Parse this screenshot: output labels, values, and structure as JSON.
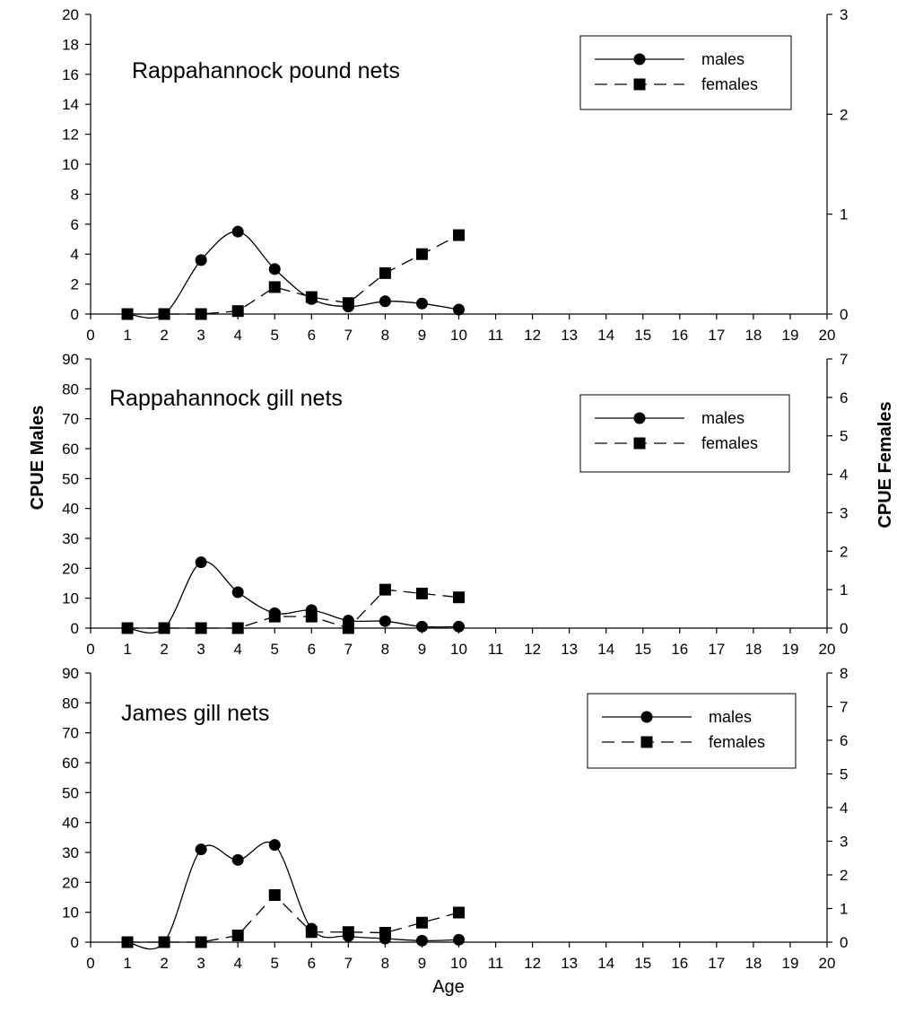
{
  "figure": {
    "y_left_title": "CPUE Males",
    "y_right_title": "CPUE Females",
    "x_title": "Age"
  },
  "chart_data": [
    {
      "type": "line",
      "title": "Rappahannock pound nets",
      "xlabel": "Age",
      "ylabel": "CPUE Males",
      "y2label": "CPUE Females",
      "xlim": [
        0,
        20
      ],
      "x_ticks": [
        0,
        1,
        2,
        3,
        4,
        5,
        6,
        7,
        8,
        9,
        10,
        11,
        12,
        13,
        14,
        15,
        16,
        17,
        18,
        19,
        20
      ],
      "ylim": [
        0,
        20
      ],
      "y_ticks": [
        0,
        2,
        4,
        6,
        8,
        10,
        12,
        14,
        16,
        18,
        20
      ],
      "y2lim": [
        0,
        3
      ],
      "y2_ticks": [
        0,
        1,
        2,
        3
      ],
      "grid": false,
      "legend": "top-right",
      "series": [
        {
          "name": "males",
          "axis": "left",
          "marker": "circle",
          "line": "solid",
          "smooth": true,
          "x": [
            1,
            2,
            3,
            4,
            5,
            6,
            7,
            8,
            9,
            10
          ],
          "y": [
            0,
            0,
            3.6,
            5.5,
            3.0,
            1.0,
            0.5,
            0.85,
            0.7,
            0.3
          ]
        },
        {
          "name": "females",
          "axis": "right",
          "marker": "square",
          "line": "dashed",
          "smooth": false,
          "x": [
            1,
            2,
            3,
            4,
            5,
            6,
            7,
            8,
            9,
            10
          ],
          "y": [
            0,
            0,
            0,
            0.03,
            0.27,
            0.17,
            0.11,
            0.41,
            0.6,
            0.79
          ]
        }
      ]
    },
    {
      "type": "line",
      "title": "Rappahannock gill nets",
      "xlabel": "Age",
      "ylabel": "CPUE Males",
      "y2label": "CPUE Females",
      "xlim": [
        0,
        20
      ],
      "x_ticks": [
        0,
        1,
        2,
        3,
        4,
        5,
        6,
        7,
        8,
        9,
        10,
        11,
        12,
        13,
        14,
        15,
        16,
        17,
        18,
        19,
        20
      ],
      "ylim": [
        0,
        90
      ],
      "y_ticks": [
        0,
        10,
        20,
        30,
        40,
        50,
        60,
        70,
        80,
        90
      ],
      "y2lim": [
        0,
        7
      ],
      "y2_ticks": [
        0,
        1,
        2,
        3,
        4,
        5,
        6,
        7
      ],
      "grid": false,
      "legend": "top-right",
      "series": [
        {
          "name": "males",
          "axis": "left",
          "marker": "circle",
          "line": "solid",
          "smooth": true,
          "x": [
            1,
            2,
            3,
            4,
            5,
            6,
            7,
            8,
            9,
            10
          ],
          "y": [
            0,
            0,
            22,
            12,
            5,
            6,
            2.5,
            2.3,
            0.5,
            0.5
          ]
        },
        {
          "name": "females",
          "axis": "right",
          "marker": "square",
          "line": "dashed",
          "smooth": false,
          "x": [
            1,
            2,
            3,
            4,
            5,
            6,
            7,
            8,
            9,
            10
          ],
          "y": [
            0,
            0,
            0,
            0,
            0.3,
            0.3,
            0,
            1.0,
            0.9,
            0.8
          ]
        }
      ]
    },
    {
      "type": "line",
      "title": "James gill nets",
      "xlabel": "Age",
      "ylabel": "CPUE Males",
      "y2label": "CPUE Females",
      "xlim": [
        0,
        20
      ],
      "x_ticks": [
        0,
        1,
        2,
        3,
        4,
        5,
        6,
        7,
        8,
        9,
        10,
        11,
        12,
        13,
        14,
        15,
        16,
        17,
        18,
        19,
        20
      ],
      "ylim": [
        0,
        90
      ],
      "y_ticks": [
        0,
        10,
        20,
        30,
        40,
        50,
        60,
        70,
        80,
        90
      ],
      "y2lim": [
        0,
        8
      ],
      "y2_ticks": [
        0,
        1,
        2,
        3,
        4,
        5,
        6,
        7,
        8
      ],
      "grid": false,
      "legend": "top-right",
      "series": [
        {
          "name": "males",
          "axis": "left",
          "marker": "circle",
          "line": "solid",
          "smooth": true,
          "x": [
            1,
            2,
            3,
            4,
            5,
            6,
            7,
            8,
            9,
            10
          ],
          "y": [
            0,
            0,
            31,
            27.5,
            32.5,
            4.5,
            2,
            1.2,
            0.5,
            0.8
          ]
        },
        {
          "name": "females",
          "axis": "right",
          "marker": "square",
          "line": "dashed",
          "smooth": false,
          "x": [
            1,
            2,
            3,
            4,
            5,
            6,
            7,
            8,
            9,
            10
          ],
          "y": [
            0,
            0,
            0,
            0.2,
            1.4,
            0.3,
            0.3,
            0.28,
            0.58,
            0.88
          ]
        }
      ]
    }
  ]
}
